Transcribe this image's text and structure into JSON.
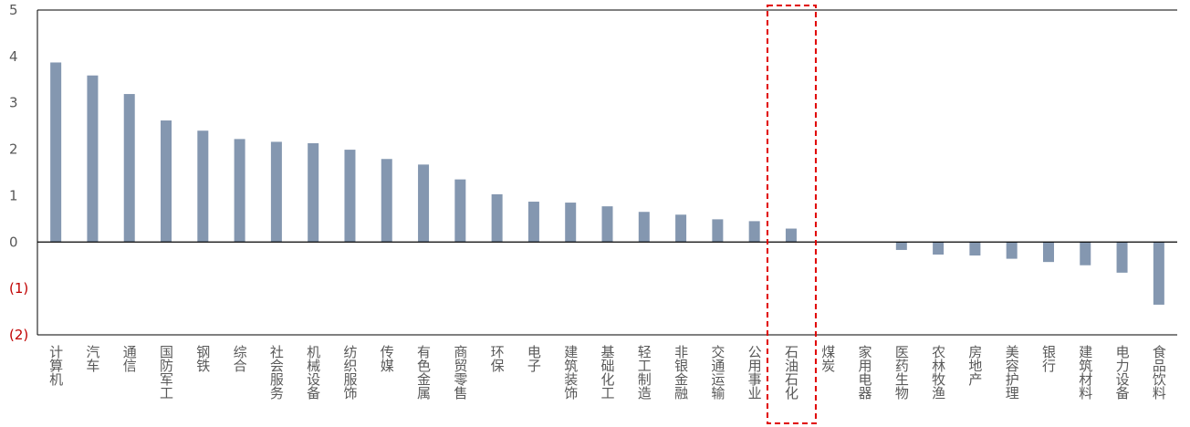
{
  "chart_data": {
    "type": "bar",
    "title": "",
    "xlabel": "",
    "ylabel": "",
    "ylim": [
      -2,
      5
    ],
    "yticks": [
      5,
      4,
      3,
      2,
      1,
      0,
      -1,
      -2
    ],
    "ytick_labels": [
      "5",
      "4",
      "3",
      "2",
      "1",
      "0",
      "(1)",
      "(2)"
    ],
    "categories": [
      "计算机",
      "汽车",
      "通信",
      "国防军工",
      "钢铁",
      "综合",
      "社会服务",
      "机械设备",
      "纺织服饰",
      "传媒",
      "有色金属",
      "商贸零售",
      "环保",
      "电子",
      "建筑装饰",
      "基础化工",
      "轻工制造",
      "非银金融",
      "交通运输",
      "公用事业",
      "石油石化",
      "煤炭",
      "家用电器",
      "医药生物",
      "农林牧渔",
      "房地产",
      "美容护理",
      "银行",
      "建筑材料",
      "电力设备",
      "食品饮料"
    ],
    "values": [
      3.87,
      3.59,
      3.19,
      2.62,
      2.4,
      2.22,
      2.16,
      2.13,
      1.99,
      1.79,
      1.67,
      1.35,
      1.03,
      0.87,
      0.85,
      0.77,
      0.65,
      0.59,
      0.49,
      0.45,
      0.29,
      0.0,
      0.0,
      -0.17,
      -0.27,
      -0.29,
      -0.36,
      -0.43,
      -0.5,
      -0.66,
      -1.35
    ],
    "highlight_category": "石油石化",
    "grid": false,
    "legend": "none",
    "colors": {
      "bar": "#8497B0",
      "axis": "#000000",
      "positive_tick_label": "#595959",
      "negative_tick_label": "#C00000",
      "highlight_box": "#E00000"
    }
  }
}
